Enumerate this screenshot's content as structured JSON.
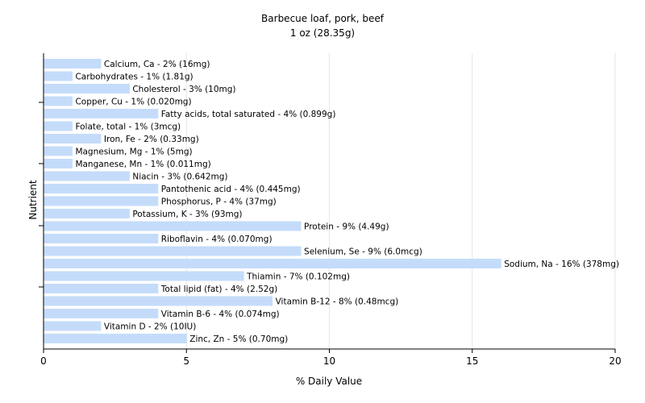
{
  "chart_data": {
    "type": "bar",
    "orientation": "horizontal",
    "title": "Barbecue loaf, pork, beef",
    "subtitle": "1 oz (28.35g)",
    "xlabel": "% Daily Value",
    "ylabel": "Nutrient",
    "xlim": [
      0,
      20
    ],
    "xticks": [
      0,
      5,
      10,
      15,
      20
    ],
    "grid": true,
    "colors": {
      "bar": "#c4dcfa",
      "axis": "#000000",
      "grid": "#e6e6e6"
    },
    "categories": [
      "Calcium, Ca",
      "Carbohydrates",
      "Cholesterol",
      "Copper, Cu",
      "Fatty acids, total saturated",
      "Folate, total",
      "Iron, Fe",
      "Magnesium, Mg",
      "Manganese, Mn",
      "Niacin",
      "Pantothenic acid",
      "Phosphorus, P",
      "Potassium, K",
      "Protein",
      "Riboflavin",
      "Selenium, Se",
      "Sodium, Na",
      "Thiamin",
      "Total lipid (fat)",
      "Vitamin B-12",
      "Vitamin B-6",
      "Vitamin D",
      "Zinc, Zn"
    ],
    "values": [
      2,
      1,
      3,
      1,
      4,
      1,
      2,
      1,
      1,
      3,
      4,
      4,
      3,
      9,
      4,
      9,
      16,
      7,
      4,
      8,
      4,
      2,
      5
    ],
    "labels": [
      "Calcium, Ca - 2% (16mg)",
      "Carbohydrates - 1% (1.81g)",
      "Cholesterol - 3% (10mg)",
      "Copper, Cu - 1% (0.020mg)",
      "Fatty acids, total saturated - 4% (0.899g)",
      "Folate, total - 1% (3mcg)",
      "Iron, Fe - 2% (0.33mg)",
      "Magnesium, Mg - 1% (5mg)",
      "Manganese, Mn - 1% (0.011mg)",
      "Niacin - 3% (0.642mg)",
      "Pantothenic acid - 4% (0.445mg)",
      "Phosphorus, P - 4% (37mg)",
      "Potassium, K - 3% (93mg)",
      "Protein - 9% (4.49g)",
      "Riboflavin - 4% (0.070mg)",
      "Selenium, Se - 9% (6.0mcg)",
      "Sodium, Na - 16% (378mg)",
      "Thiamin - 7% (0.102mg)",
      "Total lipid (fat) - 4% (2.52g)",
      "Vitamin B-12 - 8% (0.48mcg)",
      "Vitamin B-6 - 4% (0.074mg)",
      "Vitamin D - 2% (10IU)",
      "Zinc, Zn - 5% (0.70mg)"
    ]
  }
}
